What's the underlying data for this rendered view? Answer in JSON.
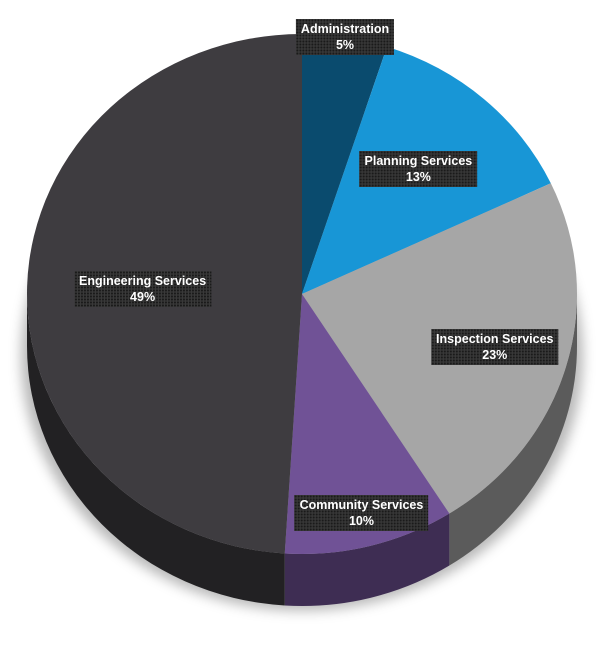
{
  "chart_data": {
    "type": "pie",
    "title": "",
    "start_angle_deg": 0,
    "direction": "clockwise",
    "slices": [
      {
        "label": "Administration",
        "value": 5,
        "display": "5%",
        "color": "#0a4b6e"
      },
      {
        "label": "Planning Services",
        "value": 13,
        "display": "13%",
        "color": "#1896d6"
      },
      {
        "label": "Inspection Services",
        "value": 23,
        "display": "23%",
        "color": "#a6a6a6"
      },
      {
        "label": "Community Services",
        "value": 10,
        "display": "10%",
        "color": "#705296"
      },
      {
        "label": "Engineering Services",
        "value": 49,
        "display": "49%",
        "color": "#3e3c40"
      }
    ]
  }
}
